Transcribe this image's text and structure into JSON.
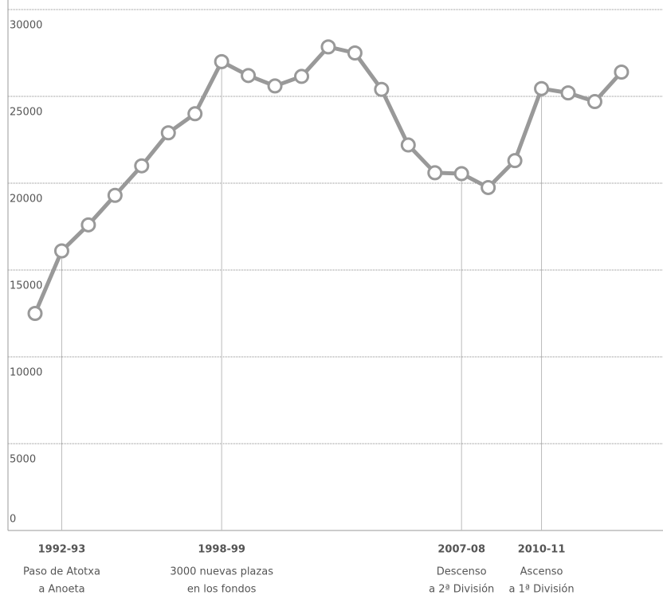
{
  "chart_data": {
    "type": "line",
    "categories": [
      null,
      "1992-93",
      null,
      null,
      null,
      null,
      null,
      "1998-99",
      null,
      null,
      null,
      null,
      null,
      null,
      null,
      null,
      "2007-08",
      null,
      null,
      "2010-11",
      null,
      null,
      null
    ],
    "series": [
      {
        "color": "#999999",
        "values": [
          12500,
          16100,
          17600,
          19300,
          21000,
          22900,
          24000,
          27000,
          26200,
          25600,
          26150,
          27850,
          27500,
          25400,
          22200,
          20600,
          20550,
          19750,
          21300,
          25450,
          25200,
          24700,
          26400
        ]
      }
    ],
    "ylim": [
      0,
      30000
    ],
    "yticks": [
      0,
      5000,
      10000,
      15000,
      20000,
      25000,
      30000
    ],
    "grid": true,
    "annotations": [
      {
        "x": "1992-93",
        "text": [
          "Paso de Atotxa",
          "a Anoeta"
        ]
      },
      {
        "x": "1998-99",
        "text": [
          "3000 nuevas plazas",
          "en los fondos"
        ]
      },
      {
        "x": "2007-08",
        "text": [
          "Descenso",
          "a 2ª División"
        ]
      },
      {
        "x": "2010-11",
        "text": [
          "Ascenso",
          "a 1ª División"
        ]
      }
    ]
  }
}
